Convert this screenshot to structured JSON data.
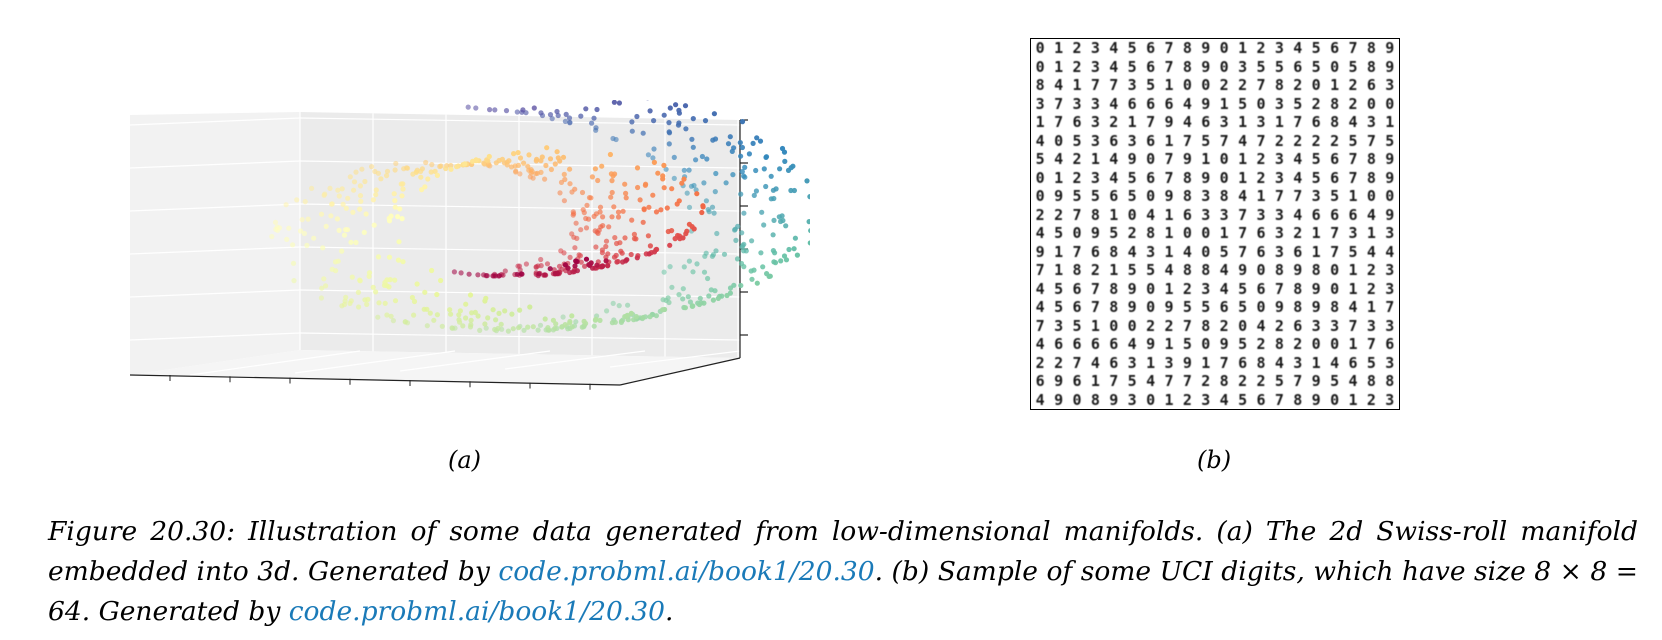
{
  "panel_a": {
    "label": "(a)",
    "colormap": [
      "#9e0142",
      "#d53e4f",
      "#f46d43",
      "#fdae61",
      "#fee08b",
      "#ffffbf",
      "#e6f598",
      "#abdda4",
      "#66c2a5",
      "#3288bd",
      "#5e4fa2"
    ]
  },
  "panel_b": {
    "label": "(b)",
    "digit_rows": [
      "01234567890123456789",
      "01234567890355650589",
      "84177351002278201263",
      "37334666491503528200",
      "17632179463131768431",
      "40536361757472222575",
      "54214907910123456789",
      "01234567890123456789",
      "09556509838417735100",
      "22781041633733466649",
      "45095281001763217313",
      "91768431405763617544",
      "71821554884908980123",
      "45678901234567890123",
      "45678909556509898417",
      "73510022782042633733",
      "46666491509528200176",
      "22746313917684314653",
      "69617547728225795488",
      "49089301234567890123"
    ]
  },
  "caption": {
    "part1": "Figure 20.30: Illustration of some data generated from low-dimensional manifolds. (a) The 2d Swiss-roll manifold embedded into 3d. Generated by ",
    "link1": "code.probml.ai/book1/20.30",
    "part2": ". (b) Sample of some UCI digits, which have size 8 × 8 = 64. Generated by ",
    "link2": "code.probml.ai/book1/20.30",
    "part3": "."
  }
}
